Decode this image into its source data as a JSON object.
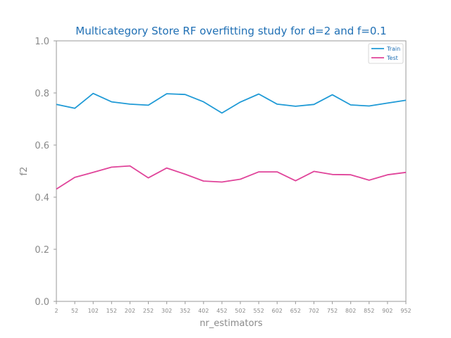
{
  "chart_data": {
    "type": "line",
    "title": "Multicategory Store RF overfitting study for d=2 and f=0.1",
    "xlabel": "nr_estimators",
    "ylabel": "f2",
    "ylim": [
      0.0,
      1.0
    ],
    "yticks": [
      "0.0",
      "0.2",
      "0.4",
      "0.6",
      "0.8",
      "1.0"
    ],
    "grid": false,
    "legend_position": "top-right",
    "categories": [
      "2",
      "52",
      "102",
      "152",
      "202",
      "252",
      "302",
      "352",
      "402",
      "452",
      "502",
      "552",
      "602",
      "652",
      "702",
      "752",
      "802",
      "852",
      "902",
      "952"
    ],
    "series": [
      {
        "name": "Train",
        "color": "#1f9ad6",
        "values": [
          0.756,
          0.741,
          0.798,
          0.766,
          0.757,
          0.753,
          0.797,
          0.794,
          0.766,
          0.723,
          0.765,
          0.796,
          0.757,
          0.749,
          0.756,
          0.793,
          0.754,
          0.75,
          0.761,
          0.772
        ]
      },
      {
        "name": "Test",
        "color": "#e0449a",
        "values": [
          0.431,
          0.476,
          0.495,
          0.515,
          0.52,
          0.474,
          0.512,
          0.488,
          0.462,
          0.458,
          0.469,
          0.497,
          0.497,
          0.463,
          0.499,
          0.487,
          0.486,
          0.465,
          0.486,
          0.495
        ]
      }
    ]
  }
}
